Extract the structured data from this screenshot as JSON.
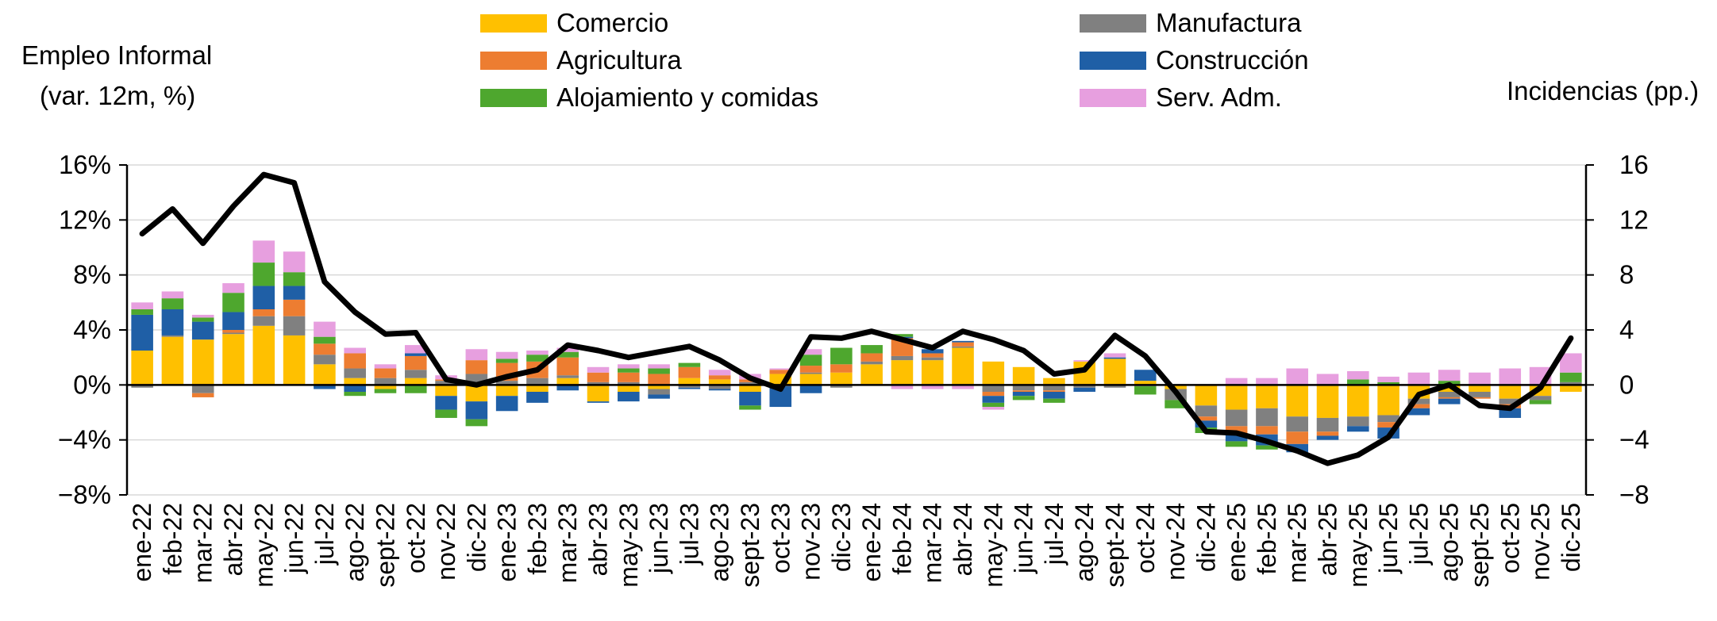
{
  "chart_data": {
    "type": "stacked-bar-with-line",
    "y_left_title": [
      "Empleo Informal",
      "(var. 12m, %)"
    ],
    "y_right_title": "Incidencias (pp.)",
    "y_left_range": [
      -8,
      16
    ],
    "y_right_range": [
      -8,
      16
    ],
    "y_left_ticks": [
      "16%",
      "12%",
      "8%",
      "4%",
      "0%",
      "−4%",
      "−8%"
    ],
    "y_right_ticks": [
      "16",
      "12",
      "8",
      "4",
      "0",
      "−4",
      "−8"
    ],
    "tick_values": [
      16,
      12,
      8,
      4,
      0,
      -4,
      -8
    ],
    "categories": [
      "ene-22",
      "feb-22",
      "mar-22",
      "abr-22",
      "may-22",
      "jun-22",
      "jul-22",
      "ago-22",
      "sept-22",
      "oct-22",
      "nov-22",
      "dic-22",
      "ene-23",
      "feb-23",
      "mar-23",
      "abr-23",
      "may-23",
      "jun-23",
      "jul-23",
      "ago-23",
      "sept-23",
      "oct-23",
      "nov-23",
      "dic-23",
      "ene-24",
      "feb-24",
      "mar-24",
      "abr-24",
      "may-24",
      "jun-24",
      "jul-24",
      "ago-24",
      "sept-24",
      "oct-24",
      "nov-24",
      "dic-24",
      "ene-25",
      "feb-25",
      "mar-25",
      "abr-25",
      "may-25",
      "jun-25",
      "jul-25",
      "ago-25",
      "sept-25",
      "oct-25",
      "nov-25",
      "dic-25"
    ],
    "series": [
      {
        "name": "Comercio",
        "color": "#FFC000",
        "values": [
          2.5,
          3.5,
          3.3,
          3.7,
          4.3,
          3.6,
          1.5,
          0.5,
          -0.3,
          0.5,
          -0.8,
          -1.2,
          -0.8,
          -0.5,
          0.5,
          -1.2,
          -0.5,
          -0.3,
          0.5,
          0.4,
          -0.5,
          0.8,
          0.8,
          0.9,
          1.5,
          1.8,
          1.8,
          2.7,
          1.7,
          1.3,
          0.5,
          1.7,
          1.9,
          0.3,
          -0.3,
          -1.5,
          -1.8,
          -1.7,
          -2.3,
          -2.4,
          -2.3,
          -2.2,
          -1.0,
          -0.5,
          -0.5,
          -1.0,
          -0.8,
          -0.5
        ]
      },
      {
        "name": "Manufactura",
        "color": "#808080",
        "values": [
          -0.2,
          0.1,
          -0.6,
          0.1,
          0.7,
          1.4,
          0.7,
          0.7,
          0.5,
          0.6,
          0.3,
          0.8,
          0.3,
          0.5,
          0.2,
          0.2,
          0.2,
          -0.4,
          -0.2,
          -0.3,
          0.2,
          -0.1,
          0.1,
          -0.2,
          0.2,
          0.3,
          0.2,
          0.1,
          -0.5,
          -0.4,
          -0.4,
          -0.2,
          -0.2,
          -0.1,
          -0.8,
          -0.8,
          -1.2,
          -1.3,
          -1.1,
          -1.0,
          -0.7,
          -0.5,
          -0.4,
          -0.4,
          -0.4,
          -0.4,
          -0.3,
          0.2
        ]
      },
      {
        "name": "Agricultura",
        "color": "#ED7D31",
        "values": [
          0.0,
          0.0,
          -0.3,
          0.2,
          0.5,
          1.2,
          0.8,
          1.1,
          0.7,
          1.0,
          0.1,
          1.0,
          1.3,
          1.2,
          1.3,
          0.7,
          0.7,
          0.8,
          0.8,
          0.3,
          0.2,
          0.3,
          0.5,
          0.6,
          0.6,
          1.3,
          0.3,
          0.3,
          -0.3,
          -0.1,
          -0.1,
          0.0,
          0.0,
          0.0,
          0.0,
          -0.3,
          -0.5,
          -0.6,
          -0.9,
          -0.3,
          0.0,
          -0.4,
          -0.3,
          -0.1,
          -0.1,
          -0.3,
          0.0,
          0.0
        ]
      },
      {
        "name": "Construcción",
        "color": "#1F5FA6",
        "values": [
          2.6,
          1.9,
          1.3,
          1.3,
          1.7,
          1.0,
          -0.3,
          -0.5,
          0.0,
          0.2,
          -1.0,
          -1.3,
          -1.1,
          -0.8,
          -0.4,
          -0.1,
          -0.7,
          -0.3,
          -0.1,
          -0.1,
          -1.0,
          -1.5,
          -0.6,
          0.0,
          0.0,
          0.1,
          0.3,
          0.1,
          -0.5,
          -0.3,
          -0.5,
          -0.3,
          0.1,
          0.8,
          0.0,
          -0.5,
          -0.6,
          -0.8,
          -0.6,
          -0.3,
          -0.4,
          -0.8,
          -0.5,
          -0.4,
          0.0,
          -0.7,
          0.0,
          0.0
        ]
      },
      {
        "name": "Alojamiento y comidas",
        "color": "#4EA72E",
        "values": [
          0.4,
          0.8,
          0.3,
          1.4,
          1.7,
          1.0,
          0.5,
          -0.3,
          -0.3,
          -0.6,
          -0.6,
          -0.5,
          0.3,
          0.5,
          0.4,
          0.0,
          0.3,
          0.4,
          0.3,
          0.0,
          -0.3,
          0.0,
          0.8,
          1.2,
          0.6,
          0.2,
          0.0,
          0.0,
          -0.3,
          -0.3,
          -0.3,
          0.0,
          0.0,
          -0.6,
          -0.6,
          -0.4,
          -0.4,
          -0.3,
          0.0,
          0.0,
          0.4,
          0.2,
          0.0,
          0.3,
          0.0,
          0.0,
          -0.3,
          0.7
        ]
      },
      {
        "name": "Serv. Adm.",
        "color": "#E79FDF",
        "values": [
          0.5,
          0.5,
          0.2,
          0.7,
          1.6,
          1.5,
          1.1,
          0.4,
          0.3,
          0.6,
          0.3,
          0.8,
          0.5,
          0.3,
          0.3,
          0.4,
          0.3,
          0.3,
          0.0,
          0.4,
          0.4,
          0.1,
          0.4,
          0.0,
          0.0,
          -0.3,
          -0.3,
          -0.3,
          -0.2,
          0.0,
          0.0,
          0.1,
          0.3,
          0.0,
          0.0,
          0.0,
          0.5,
          0.5,
          1.2,
          0.8,
          0.6,
          0.4,
          0.9,
          0.8,
          0.9,
          1.2,
          1.3,
          1.4
        ]
      }
    ],
    "line": {
      "name": "Empleo Informal",
      "color": "#000000",
      "values": [
        11.0,
        12.8,
        10.3,
        13.0,
        15.3,
        14.7,
        7.5,
        5.3,
        3.7,
        3.8,
        0.4,
        0.0,
        0.6,
        1.1,
        2.9,
        2.5,
        2.0,
        2.4,
        2.8,
        1.8,
        0.5,
        -0.3,
        3.5,
        3.4,
        3.9,
        3.3,
        2.7,
        3.9,
        3.3,
        2.5,
        0.8,
        1.1,
        3.6,
        2.1,
        -0.5,
        -3.4,
        -3.5,
        -4.1,
        -4.8,
        -5.7,
        -5.1,
        -3.8,
        -0.7,
        0.0,
        -1.5,
        -1.7,
        -0.2,
        3.4
      ]
    }
  }
}
